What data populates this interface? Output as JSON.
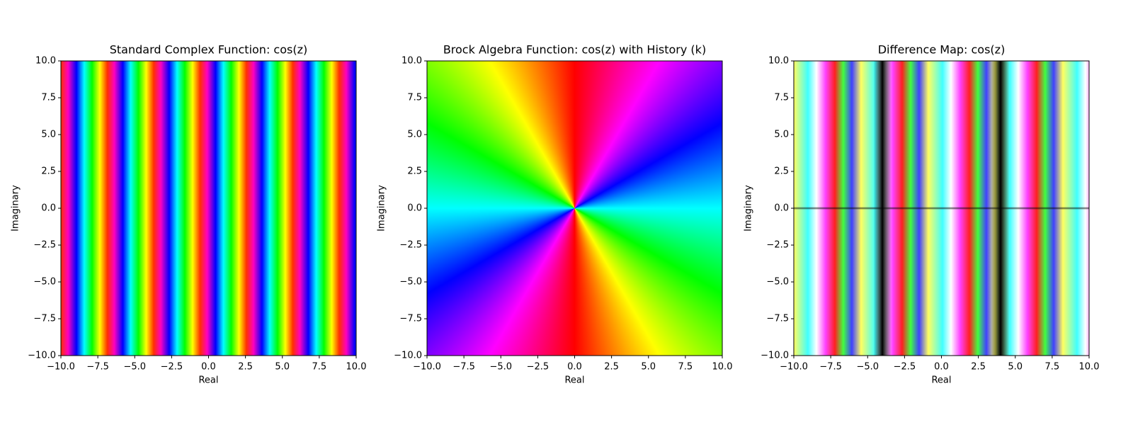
{
  "chart_data": [
    {
      "type": "image",
      "title": "Standard Complex Function: cos(z)",
      "x_label": "Real",
      "y_label": "Imaginary",
      "xlim": [
        -10,
        10
      ],
      "ylim": [
        -10,
        10
      ],
      "xticks": [
        {
          "value": -10,
          "label": "−10.0"
        },
        {
          "value": -7.5,
          "label": "−7.5"
        },
        {
          "value": -5,
          "label": "−5.0"
        },
        {
          "value": -2.5,
          "label": "−2.5"
        },
        {
          "value": 0,
          "label": "0.0"
        },
        2.5,
        {
          "value": 5,
          "label": "5.0"
        },
        7.5,
        {
          "value": 10,
          "label": "10.0"
        }
      ],
      "yticks": [
        {
          "value": -10,
          "label": "−10.0"
        },
        {
          "value": -7.5,
          "label": "−7.5"
        },
        {
          "value": -5,
          "label": "−5.0"
        },
        {
          "value": -2.5,
          "label": "−2.5"
        },
        {
          "value": 0,
          "label": "0.0"
        },
        2.5,
        {
          "value": 5,
          "label": "5.0"
        },
        7.5,
        {
          "value": 10,
          "label": "10.0"
        }
      ]
    },
    {
      "type": "image",
      "title": "Brock Algebra Function: cos(z) with History (k)",
      "x_label": "Real",
      "y_label": "Imaginary",
      "xlim": [
        -10,
        10
      ],
      "ylim": [
        -10,
        10
      ],
      "xticks": [
        {
          "value": -10,
          "label": "−10.0"
        },
        {
          "value": -7.5,
          "label": "−7.5"
        },
        {
          "value": -5,
          "label": "−5.0"
        },
        {
          "value": -2.5,
          "label": "−2.5"
        },
        {
          "value": 0,
          "label": "0.0"
        },
        2.5,
        {
          "value": 5,
          "label": "5.0"
        },
        7.5,
        {
          "value": 10,
          "label": "10.0"
        }
      ],
      "yticks": [
        {
          "value": -10,
          "label": "−10.0"
        },
        {
          "value": -7.5,
          "label": "−7.5"
        },
        {
          "value": -5,
          "label": "−5.0"
        },
        {
          "value": -2.5,
          "label": "−2.5"
        },
        {
          "value": 0,
          "label": "0.0"
        },
        2.5,
        {
          "value": 5,
          "label": "5.0"
        },
        7.5,
        {
          "value": 10,
          "label": "10.0"
        }
      ]
    },
    {
      "type": "image",
      "title": "Difference Map: cos(z)",
      "x_label": "Real",
      "y_label": "Imaginary",
      "xlim": [
        -10,
        10
      ],
      "ylim": [
        -10,
        10
      ],
      "xticks": [
        {
          "value": -10,
          "label": "−10.0"
        },
        {
          "value": -7.5,
          "label": "−7.5"
        },
        {
          "value": -5,
          "label": "−5.0"
        },
        {
          "value": -2.5,
          "label": "−2.5"
        },
        {
          "value": 0,
          "label": "0.0"
        },
        2.5,
        {
          "value": 5,
          "label": "5.0"
        },
        7.5,
        {
          "value": 10,
          "label": "10.0"
        }
      ],
      "yticks": [
        {
          "value": -10,
          "label": "−10.0"
        },
        {
          "value": -7.5,
          "label": "−7.5"
        },
        {
          "value": -5,
          "label": "−5.0"
        },
        {
          "value": -2.5,
          "label": "−2.5"
        },
        {
          "value": 0,
          "label": "0.0"
        },
        2.5,
        {
          "value": 5,
          "label": "5.0"
        },
        7.5,
        {
          "value": 10,
          "label": "10.0"
        }
      ]
    }
  ]
}
